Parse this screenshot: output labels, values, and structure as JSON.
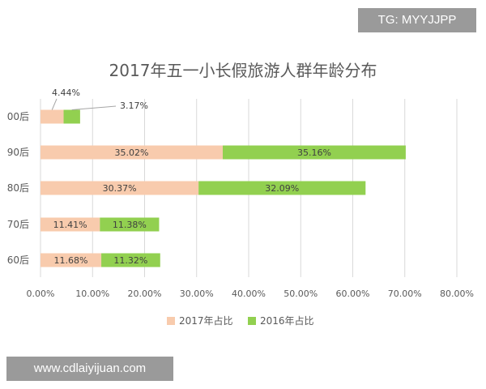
{
  "watermarks": {
    "top": "TG: MYYJJPP",
    "bottom": "www.cdlaiyijuan.com"
  },
  "colors": {
    "series_2017": "#f8cbad",
    "series_2016": "#92d050",
    "grid": "#d9d9d9",
    "leader": "#a6a6a6"
  },
  "chart_data": {
    "type": "bar",
    "orientation": "horizontal",
    "stacked": true,
    "title": "2017年五一小长假旅游人群年龄分布",
    "categories": [
      "00后",
      "90后",
      "80后",
      "70后",
      "60后"
    ],
    "series": [
      {
        "name": "2017年占比",
        "values": [
          4.44,
          35.02,
          30.37,
          11.41,
          11.68
        ],
        "labels": [
          "4.44%",
          "35.02%",
          "30.37%",
          "11.41%",
          "11.68%"
        ]
      },
      {
        "name": "2016年占比",
        "values": [
          3.17,
          35.16,
          32.09,
          11.38,
          11.32
        ],
        "labels": [
          "3.17%",
          "35.16%",
          "32.09%",
          "11.38%",
          "11.32%"
        ]
      }
    ],
    "xlim": [
      0,
      80
    ],
    "xticks": [
      "0.00%",
      "10.00%",
      "20.00%",
      "30.00%",
      "40.00%",
      "50.00%",
      "60.00%",
      "70.00%",
      "80.00%"
    ],
    "grid": true,
    "legend_position": "bottom"
  }
}
